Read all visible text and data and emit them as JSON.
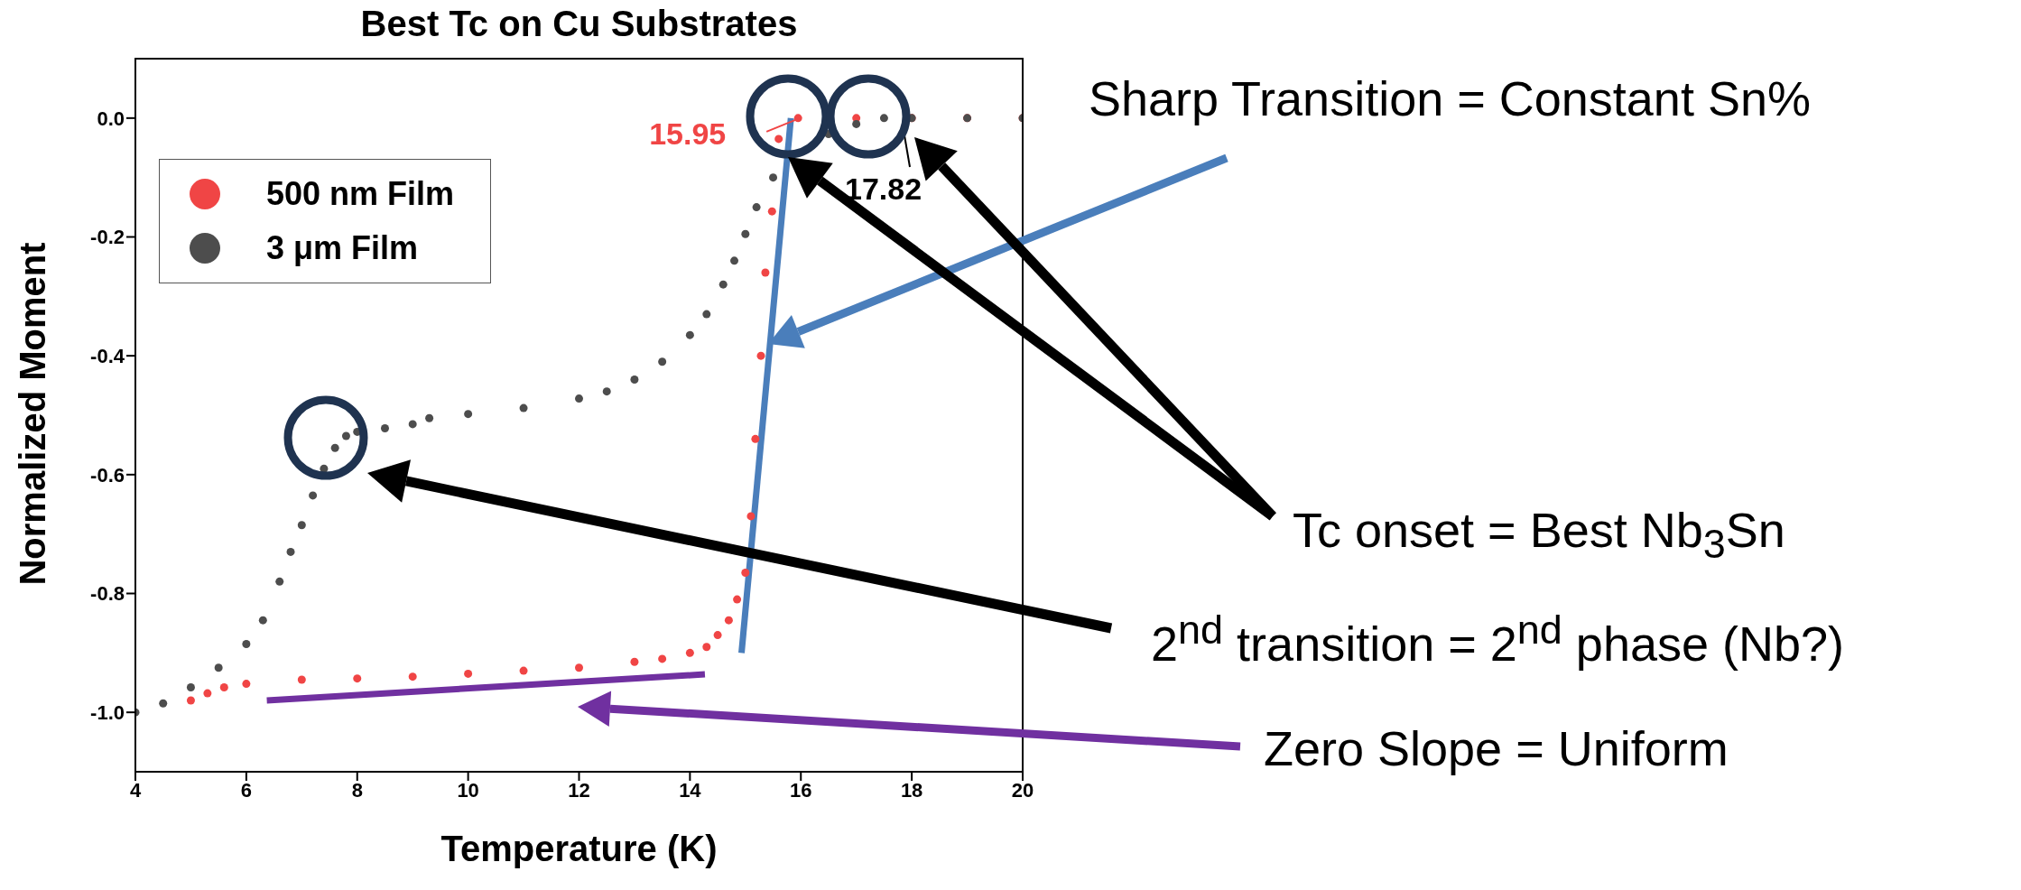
{
  "chart_data": {
    "type": "scatter",
    "title": "Best Tc on Cu Substrates",
    "xlabel": "Temperature (K)",
    "ylabel": "Normalized Moment",
    "xlim": [
      4,
      20
    ],
    "xticks": [
      4,
      6,
      8,
      10,
      12,
      14,
      16,
      18,
      20
    ],
    "ylim": [
      -1.1,
      0.1
    ],
    "yticks": [
      {
        "value": 0,
        "label": "0.0"
      },
      -0.2,
      -0.4,
      -0.6,
      -0.8,
      {
        "value": -1,
        "label": "-1.0"
      }
    ],
    "grid": false,
    "legend": "top left",
    "series": [
      {
        "name": "500 nm Film",
        "marker": "circle",
        "color": "#f04545",
        "x": [
          5,
          5.3,
          5.6,
          6,
          7,
          8,
          9,
          10,
          11,
          12,
          13,
          13.5,
          14,
          14.3,
          14.5,
          14.7,
          14.85,
          15,
          15.1,
          15.18,
          15.28,
          15.36,
          15.48,
          15.6,
          15.95,
          17,
          18,
          19,
          20
        ],
        "values": [
          -0.98,
          -0.968,
          -0.958,
          -0.952,
          -0.945,
          -0.943,
          -0.94,
          -0.935,
          -0.93,
          -0.925,
          -0.915,
          -0.91,
          -0.9,
          -0.89,
          -0.87,
          -0.845,
          -0.81,
          -0.765,
          -0.67,
          -0.54,
          -0.4,
          -0.26,
          -0.157,
          -0.035,
          0,
          0,
          0,
          0,
          0
        ]
      },
      {
        "name": "3 μm Film",
        "marker": "circle",
        "color": "#4d4d4d",
        "x": [
          4,
          4.5,
          5,
          5.5,
          6,
          6.3,
          6.6,
          6.8,
          7,
          7.2,
          7.4,
          7.6,
          7.8,
          8,
          8.5,
          9,
          9.3,
          10,
          11,
          12,
          12.5,
          13,
          13.5,
          14,
          14.3,
          14.6,
          14.8,
          15,
          15.2,
          15.5,
          16.5,
          17,
          17.5,
          18,
          19,
          20
        ],
        "values": [
          -1.0,
          -0.985,
          -0.958,
          -0.925,
          -0.885,
          -0.845,
          -0.78,
          -0.73,
          -0.685,
          -0.635,
          -0.59,
          -0.555,
          -0.535,
          -0.528,
          -0.522,
          -0.515,
          -0.505,
          -0.498,
          -0.488,
          -0.472,
          -0.46,
          -0.44,
          -0.41,
          -0.365,
          -0.33,
          -0.28,
          -0.24,
          -0.195,
          -0.15,
          -0.1,
          -0.027,
          -0.01,
          0,
          0,
          0,
          0
        ]
      },
      {
        "type": "line",
        "color": "#4a7ebb",
        "x": [
          14.93,
          15.82
        ],
        "values": [
          -0.9,
          0
        ]
      },
      {
        "type": "line",
        "marker": "none",
        "color": "#7030a0",
        "x": [
          6.37,
          14.27
        ],
        "values": [
          -0.98,
          -0.936
        ]
      }
    ],
    "annotations": [
      {
        "text": "15.95",
        "x": 15.95,
        "y": 0
      },
      "17.82",
      "Sharp Transition = Constant Sn%",
      "Tc onset = Best Nb$_{3}$Sn",
      "2$^{nd}$ transition = 2$^{nd}$ phase (Nb?)",
      "Zero Slope = Uniform"
    ]
  }
}
